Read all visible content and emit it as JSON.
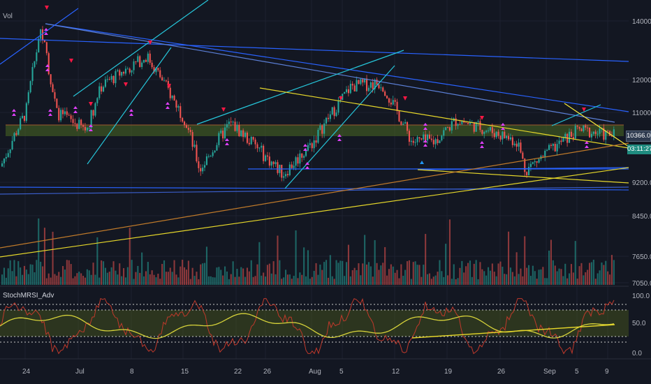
{
  "header": {
    "volume_label": "Vol"
  },
  "price_axis": {
    "ticks": [
      "14000.0",
      "12000.0",
      "11000.0",
      "10366.0",
      "9200.0",
      "8450.0",
      "7650.0",
      "7050.0"
    ],
    "current_price": "10366.0",
    "countdown": "03:11:27"
  },
  "indicator": {
    "name": "StochMRSI_Adv",
    "ticks": [
      "100.0",
      "50.0",
      "0.0"
    ]
  },
  "time_axis": {
    "ticks": [
      "24",
      "Jul",
      "8",
      "15",
      "22",
      "26",
      "Aug",
      "5",
      "12",
      "19",
      "26",
      "Sep",
      "5",
      "9"
    ]
  },
  "colors": {
    "background": "#131722",
    "up_candle": "#26a69a",
    "down_candle": "#ef5350",
    "blue_line": "#2962ff",
    "cyan_line": "#26c6da",
    "yellow_line": "#f5e83b",
    "orange_line": "#ff9800",
    "zone": "#3d5a1e"
  },
  "chart_data": {
    "type": "candlestick",
    "title": "",
    "xlabel": "",
    "ylabel": "",
    "ylim": [
      6900,
      14500
    ],
    "price_points": [
      [
        "Jun 20",
        9300
      ],
      [
        "Jun 24",
        11000
      ],
      [
        "Jun 26",
        13800
      ],
      [
        "Jun 28",
        11000
      ],
      [
        "Jul 2",
        10500
      ],
      [
        "Jul 4",
        11800
      ],
      [
        "Jul 10",
        12800
      ],
      [
        "Jul 15",
        10800
      ],
      [
        "Jul 17",
        9500
      ],
      [
        "Jul 21",
        10700
      ],
      [
        "Jul 28",
        9400
      ],
      [
        "Aug 1",
        10200
      ],
      [
        "Aug 6",
        11800
      ],
      [
        "Aug 10",
        11900
      ],
      [
        "Aug 14",
        10200
      ],
      [
        "Aug 17",
        10200
      ],
      [
        "Aug 20",
        10800
      ],
      [
        "Aug 28",
        10200
      ],
      [
        "Aug 29",
        9500
      ],
      [
        "Sep 5",
        10500
      ],
      [
        "Sep 9",
        10366
      ]
    ],
    "stoch_rsi_range": [
      0,
      100
    ]
  }
}
